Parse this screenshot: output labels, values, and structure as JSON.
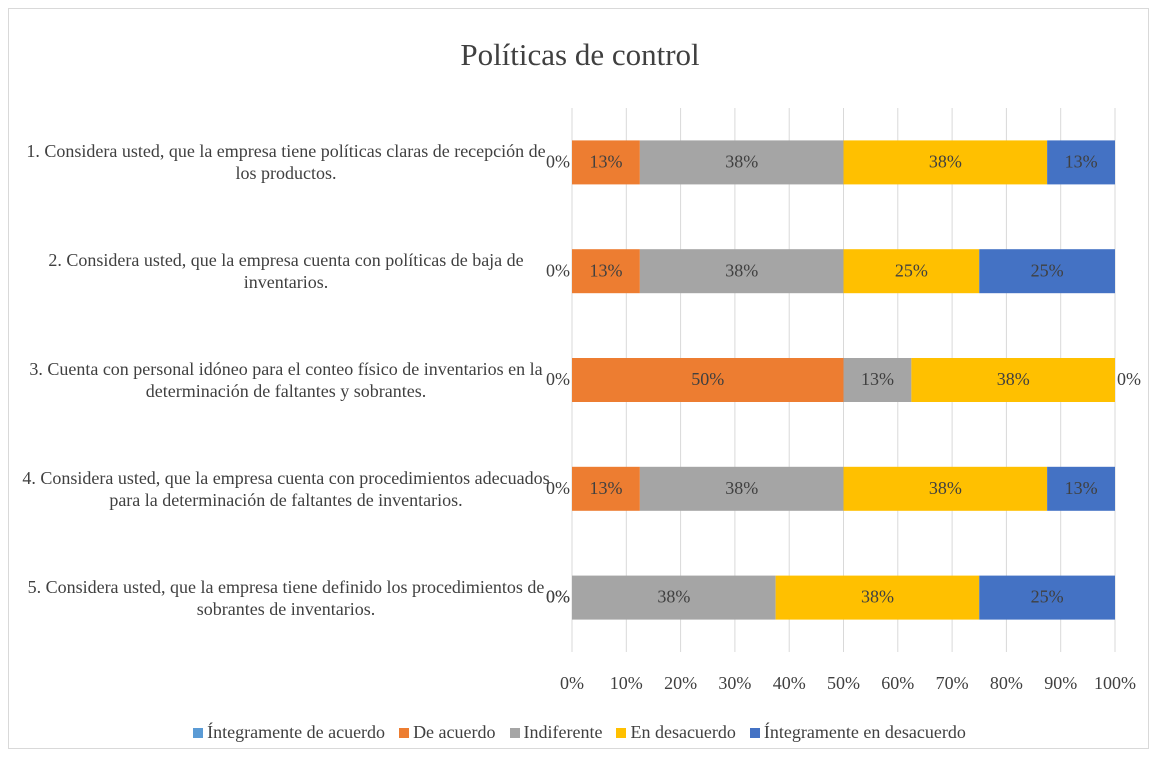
{
  "chart_data": {
    "type": "stacked-bar-horizontal",
    "title": "Políticas de control",
    "categories": [
      "1. Considera usted, que la empresa tiene políticas claras de recepción de los productos.",
      "2. Considera usted, que la empresa cuenta con políticas de baja de inventarios.",
      "3. Cuenta con personal idóneo para el conteo físico de inventarios en la determinación de faltantes y sobrantes.",
      "4. Considera usted, que la empresa cuenta con procedimientos adecuados para la determinación de faltantes de inventarios.",
      "5. Considera usted, que la empresa tiene definido los procedimientos de sobrantes de inventarios."
    ],
    "series": [
      {
        "name": "Íntegramente de acuerdo",
        "color": "#5b9bd5",
        "values": [
          0,
          0,
          0,
          0,
          0
        ],
        "value_labels": [
          "0%",
          "0%",
          "0%",
          "0%",
          "0%"
        ]
      },
      {
        "name": "De acuerdo",
        "color": "#ed7d31",
        "values": [
          12.5,
          12.5,
          50,
          12.5,
          0
        ],
        "value_labels": [
          "13%",
          "13%",
          "50%",
          "13%",
          "0%"
        ]
      },
      {
        "name": "Indiferente",
        "color": "#a5a5a5",
        "values": [
          37.5,
          37.5,
          12.5,
          37.5,
          37.5
        ],
        "value_labels": [
          "38%",
          "38%",
          "13%",
          "38%",
          "38%"
        ]
      },
      {
        "name": "En desacuerdo",
        "color": "#ffc000",
        "values": [
          37.5,
          25,
          37.5,
          37.5,
          37.5
        ],
        "value_labels": [
          "38%",
          "25%",
          "38%",
          "38%",
          "38%"
        ]
      },
      {
        "name": "Íntegramente en desacuerdo",
        "color": "#4472c4",
        "values": [
          12.5,
          25,
          0,
          12.5,
          25
        ],
        "value_labels": [
          "13%",
          "25%",
          "0%",
          "13%",
          "25%"
        ]
      }
    ],
    "xlim": [
      0,
      100
    ],
    "xticks": [
      {
        "value": 0,
        "label": "0%"
      },
      {
        "value": 10,
        "label": "10%"
      },
      {
        "value": 20,
        "label": "20%"
      },
      {
        "value": 30,
        "label": "30%"
      },
      {
        "value": 40,
        "label": "40%"
      },
      {
        "value": 50,
        "label": "50%"
      },
      {
        "value": 60,
        "label": "60%"
      },
      {
        "value": 70,
        "label": "70%"
      },
      {
        "value": 80,
        "label": "80%"
      },
      {
        "value": 90,
        "label": "90%"
      },
      {
        "value": 100,
        "label": "100%"
      }
    ],
    "grid": true,
    "legend": "bottom"
  }
}
